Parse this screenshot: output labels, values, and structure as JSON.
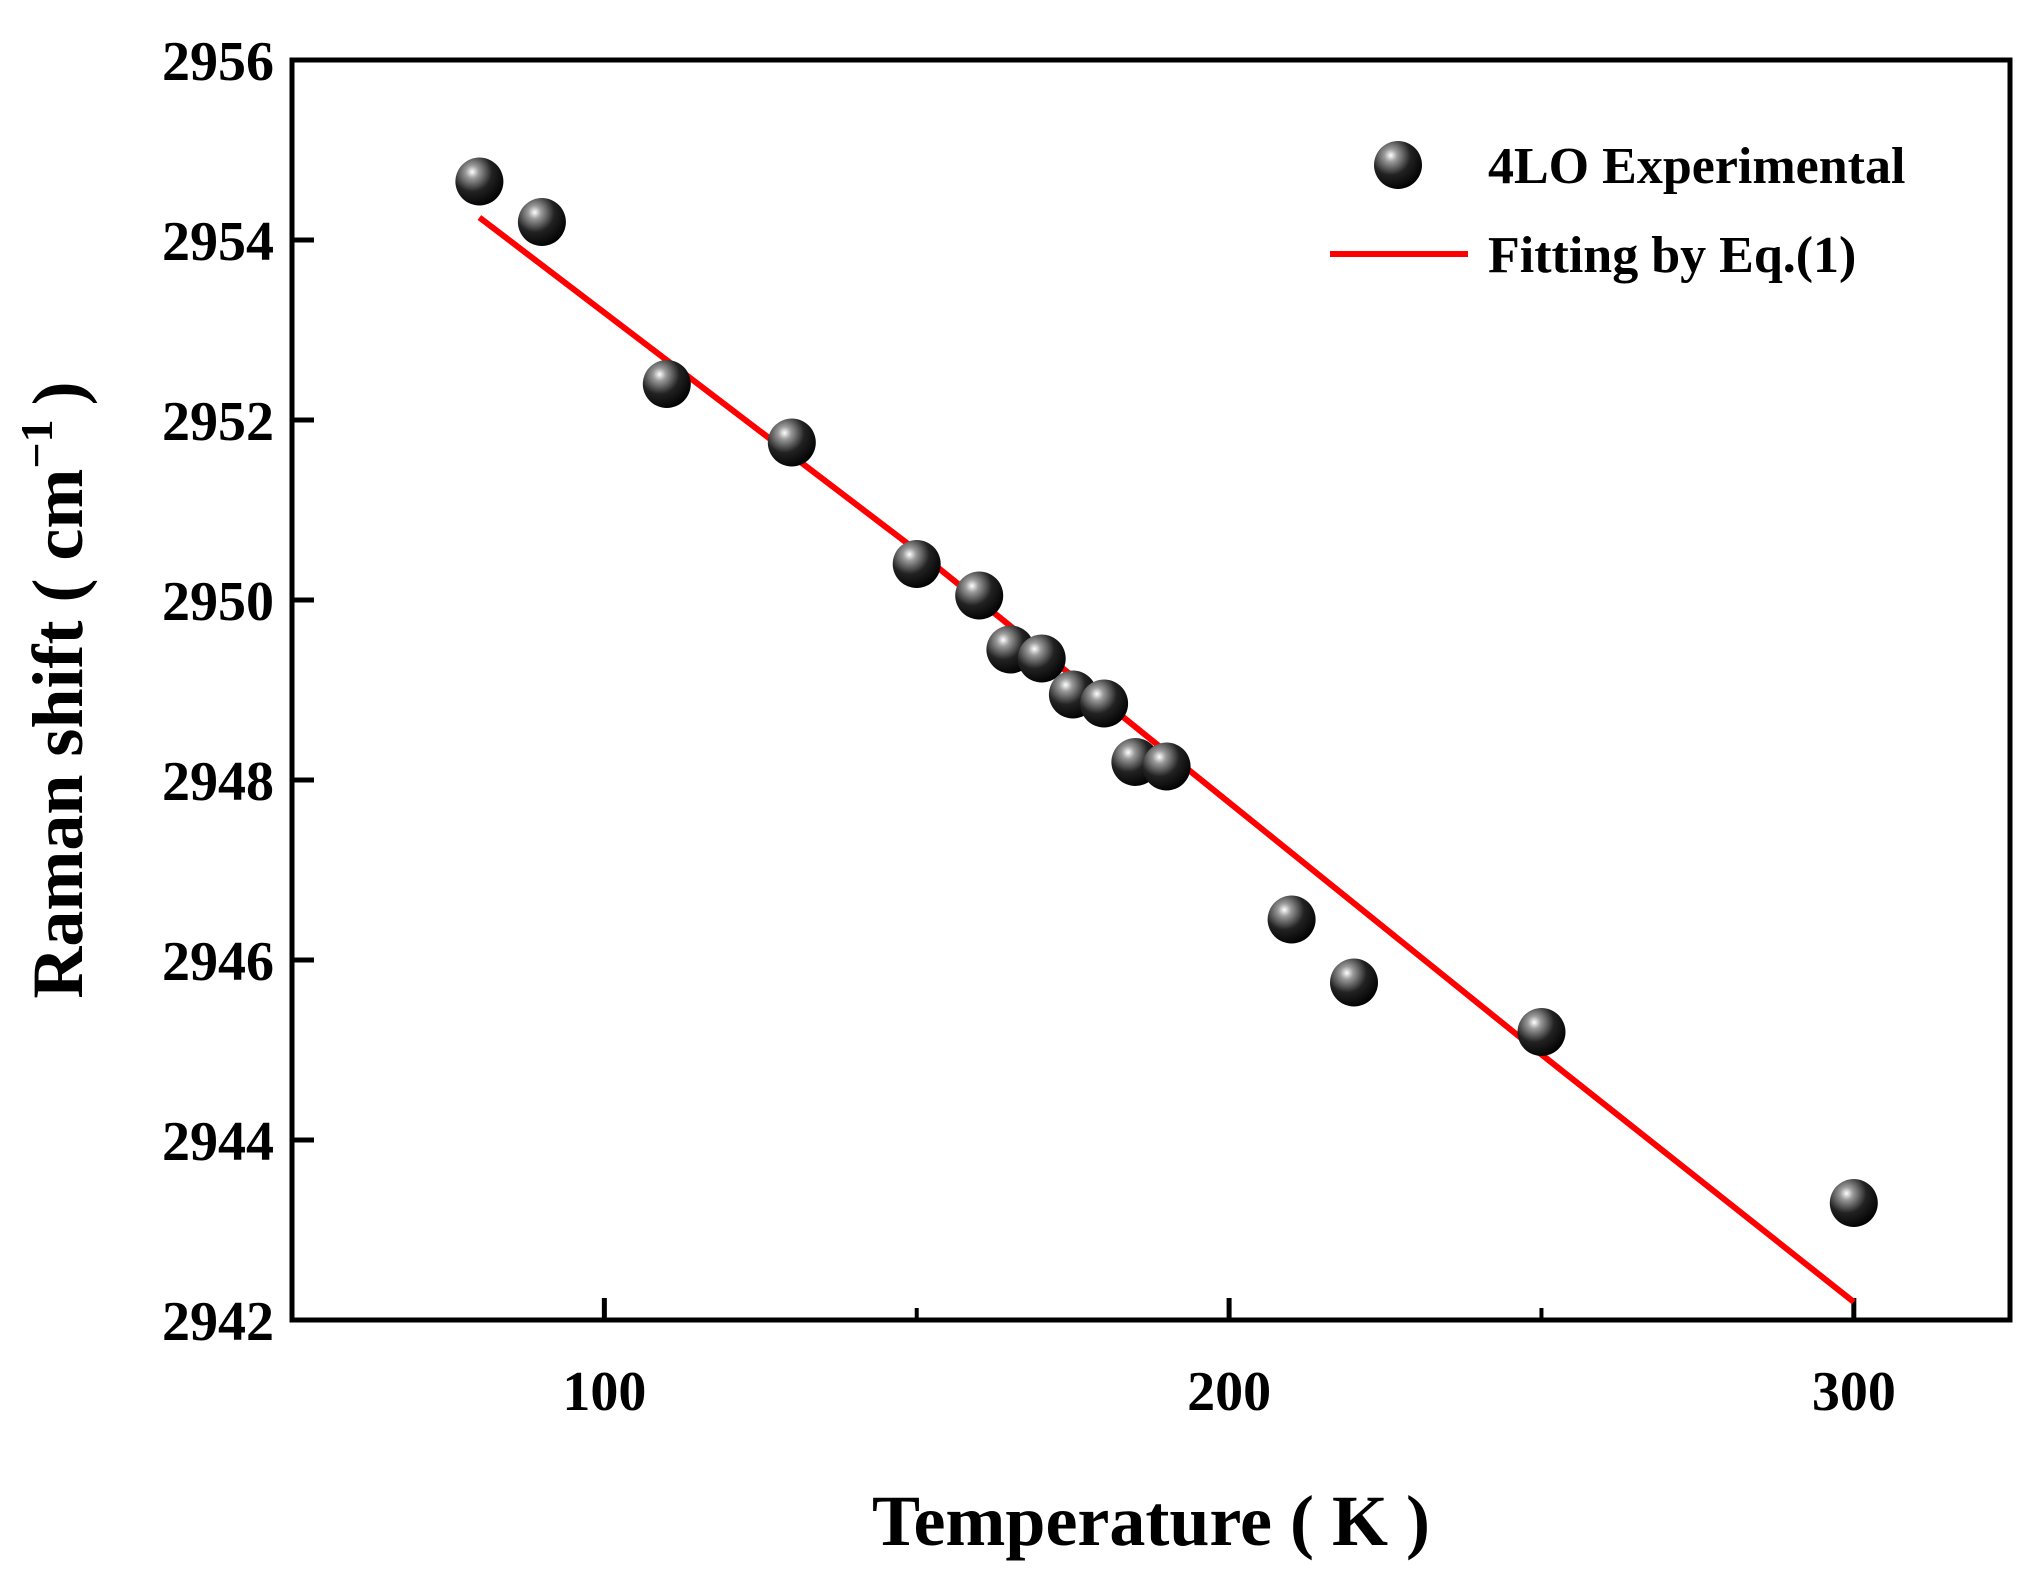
{
  "chart_data": {
    "type": "scatter",
    "title": "",
    "xlabel": "Temperature ( K )",
    "ylabel_main": "Raman shift ( cm",
    "ylabel_sup": "−1",
    "ylabel_close": ")",
    "xlim": [
      50,
      325
    ],
    "ylim": [
      2942,
      2956
    ],
    "x_ticks": [
      100,
      200,
      300
    ],
    "x_minor_ticks": [
      150,
      250
    ],
    "y_ticks": [
      2942,
      2944,
      2946,
      2948,
      2950,
      2952,
      2954,
      2956
    ],
    "x_tick_labels": [
      "100",
      "200",
      "300"
    ],
    "y_tick_labels": [
      "2942",
      "2944",
      "2946",
      "2948",
      "2950",
      "2952",
      "2954",
      "2956"
    ],
    "series": [
      {
        "name": "4LO Experimental",
        "kind": "scatter",
        "color": "#111111",
        "points": [
          {
            "x": 80,
            "y": 2954.65
          },
          {
            "x": 90,
            "y": 2954.2
          },
          {
            "x": 110,
            "y": 2952.4
          },
          {
            "x": 130,
            "y": 2951.75
          },
          {
            "x": 150,
            "y": 2950.4
          },
          {
            "x": 160,
            "y": 2950.05
          },
          {
            "x": 165,
            "y": 2949.45
          },
          {
            "x": 170,
            "y": 2949.35
          },
          {
            "x": 175,
            "y": 2948.95
          },
          {
            "x": 180,
            "y": 2948.85
          },
          {
            "x": 185,
            "y": 2948.2
          },
          {
            "x": 190,
            "y": 2948.15
          },
          {
            "x": 210,
            "y": 2946.45
          },
          {
            "x": 220,
            "y": 2945.75
          },
          {
            "x": 250,
            "y": 2945.2
          },
          {
            "x": 300,
            "y": 2943.3
          }
        ]
      },
      {
        "name": "Fitting by Eq.(1)",
        "kind": "line",
        "color": "#ff0000",
        "points": [
          {
            "x": 80,
            "y": 2954.25
          },
          {
            "x": 150,
            "y": 2950.55
          },
          {
            "x": 200,
            "y": 2947.75
          },
          {
            "x": 250,
            "y": 2944.95
          },
          {
            "x": 300,
            "y": 2942.2
          }
        ]
      }
    ],
    "legend_position": "top-right",
    "grid": false
  }
}
